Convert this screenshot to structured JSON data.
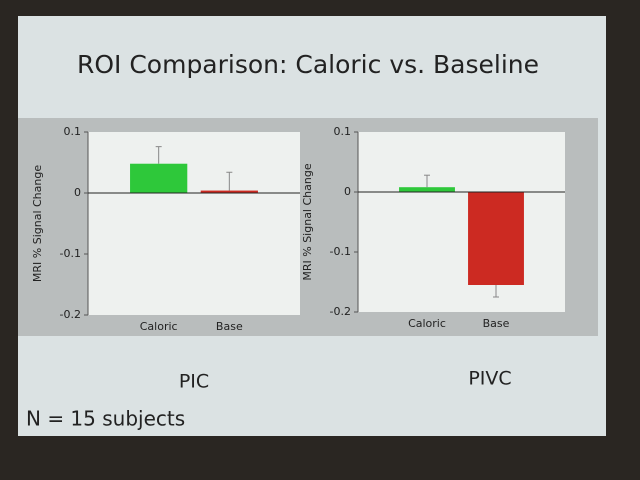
{
  "slide": {
    "title": "ROI Comparison: Caloric vs. Baseline",
    "note": "N = 15 subjects"
  },
  "chart_data": [
    {
      "type": "bar",
      "title": "PIC",
      "ylabel": "MRI % Signal Change",
      "categories": [
        "Caloric",
        "Base"
      ],
      "values": [
        0.048,
        0.004
      ],
      "errors": [
        0.028,
        0.03
      ],
      "colors": [
        "#2ec83a",
        "#cc2a22"
      ],
      "ylim": [
        -0.2,
        0.1
      ],
      "yticks": [
        0.1,
        0,
        -0.1,
        -0.2
      ]
    },
    {
      "type": "bar",
      "title": "PIVC",
      "ylabel": "MRI % Signal Change",
      "categories": [
        "Caloric",
        "Base"
      ],
      "values": [
        0.008,
        -0.155
      ],
      "errors": [
        0.02,
        0.02
      ],
      "colors": [
        "#2ec83a",
        "#cc2a22"
      ],
      "ylim": [
        -0.2,
        0.1
      ],
      "yticks": [
        0.1,
        0,
        -0.1,
        -0.2
      ]
    }
  ]
}
